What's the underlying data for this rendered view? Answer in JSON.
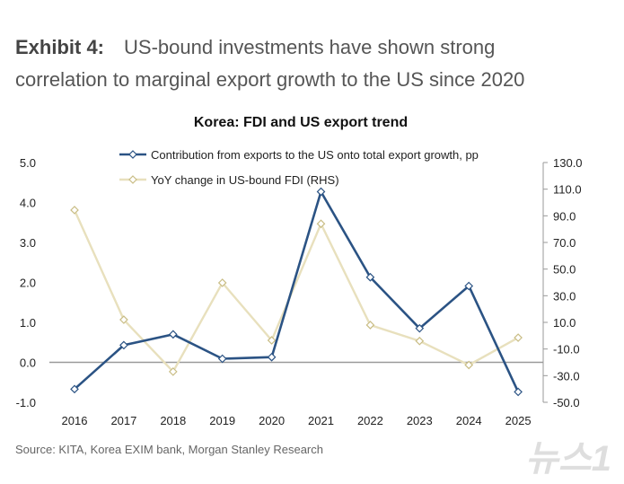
{
  "header": {
    "exhibit_label": "Exhibit 4:",
    "title_line1": "US-bound investments have shown strong",
    "title_line2": "correlation to marginal export growth to the US since 2020"
  },
  "source": "Source: KITA, Korea EXIM bank, Morgan Stanley Research",
  "watermark": "뉴스1",
  "chart_data": {
    "type": "line",
    "title": "Korea: FDI and US export trend",
    "categories": [
      "2016",
      "2017",
      "2018",
      "2019",
      "2020",
      "2021",
      "2022",
      "2023",
      "2024",
      "2025"
    ],
    "y_left": {
      "ylim": [
        -1.0,
        5.0
      ],
      "ticks": [
        "5.0",
        "4.0",
        "3.0",
        "2.0",
        "1.0",
        "0.0",
        "-1.0"
      ]
    },
    "y_right": {
      "ylim": [
        -50.0,
        130.0
      ],
      "ticks": [
        "130.0",
        "110.0",
        "90.0",
        "70.0",
        "50.0",
        "30.0",
        "10.0",
        "-10.0",
        "-30.0",
        "-50.0"
      ]
    },
    "grid": false,
    "legend_placement": "top",
    "series": [
      {
        "name": "Contribution from exports to the US onto total export growth, pp",
        "axis": "left",
        "color": "#2b5384",
        "marker": "diamond",
        "values": [
          -0.67,
          0.43,
          0.7,
          0.09,
          0.13,
          4.27,
          2.13,
          0.85,
          1.91,
          -0.74
        ]
      },
      {
        "name": "YoY change in US-bound FDI (RHS)",
        "axis": "right",
        "color": "#e8e0bd",
        "marker": "diamond",
        "values": [
          94.3,
          12.0,
          -27.0,
          39.7,
          -3.5,
          84.0,
          8.0,
          -4.0,
          -22.0,
          -1.5
        ]
      }
    ]
  }
}
